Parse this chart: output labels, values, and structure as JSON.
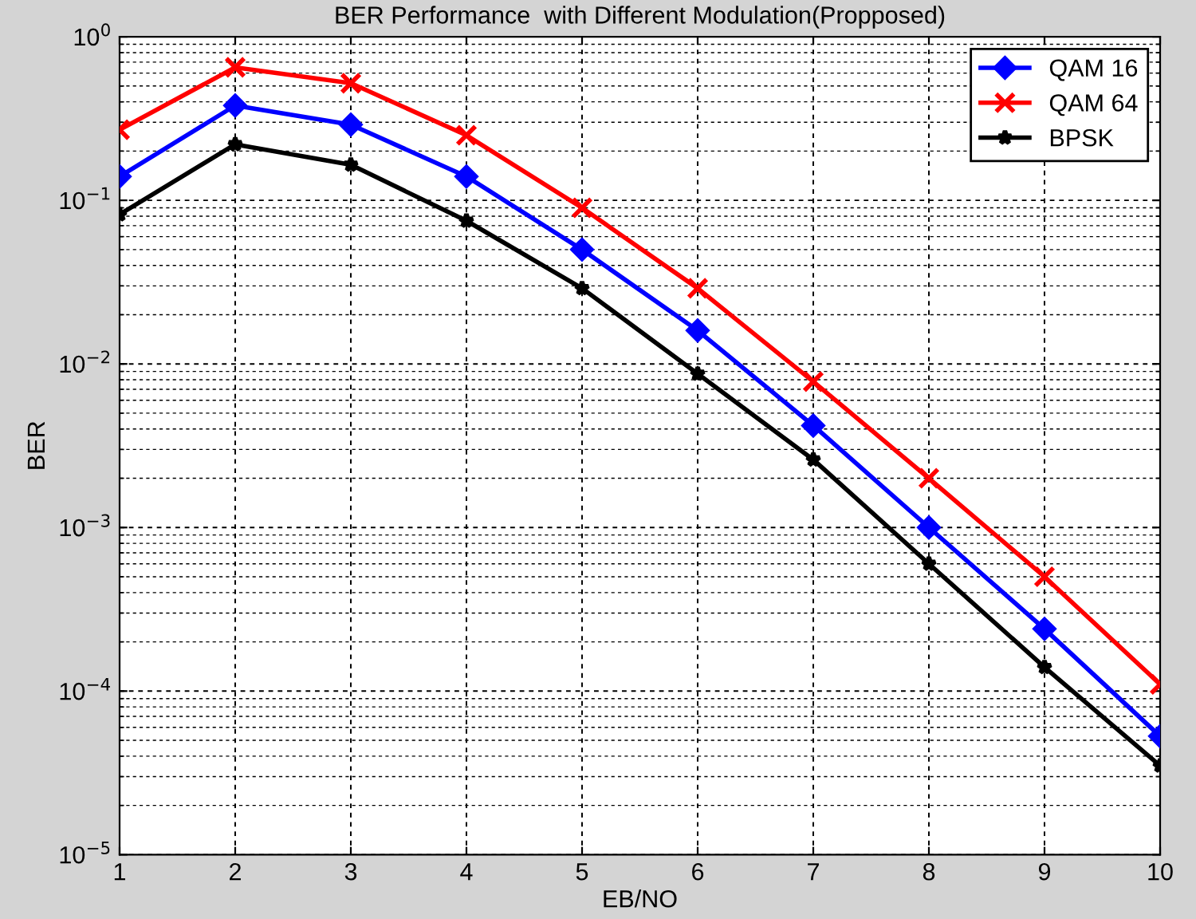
{
  "chart_data": {
    "type": "line",
    "title": "BER Performance  with Different Modulation(Propposed)",
    "xlabel": "EB/NO",
    "ylabel": "BER",
    "x": [
      1,
      2,
      3,
      4,
      5,
      6,
      7,
      8,
      9,
      10
    ],
    "series": [
      {
        "name": "QAM 16",
        "color": "#0000ff",
        "marker": "diamond",
        "values": [
          0.14,
          0.38,
          0.29,
          0.14,
          0.05,
          0.016,
          0.0042,
          0.001,
          0.00024,
          5.3e-05
        ]
      },
      {
        "name": "QAM 64",
        "color": "#ff0000",
        "marker": "cross",
        "values": [
          0.27,
          0.65,
          0.52,
          0.25,
          0.09,
          0.029,
          0.0078,
          0.002,
          0.0005,
          0.00011
        ]
      },
      {
        "name": "BPSK",
        "color": "#000000",
        "marker": "star",
        "values": [
          0.082,
          0.22,
          0.165,
          0.075,
          0.029,
          0.0087,
          0.0026,
          0.0006,
          0.00014,
          3.5e-05
        ]
      }
    ],
    "log": "y",
    "xlim": [
      1,
      10
    ],
    "xticks": [
      1,
      2,
      3,
      4,
      5,
      6,
      7,
      8,
      9,
      10
    ],
    "ylim": [
      1e-05,
      1
    ],
    "yticks": [
      {
        "value": 1e-05,
        "label": "10$^{−5}$"
      },
      {
        "value": 0.0001,
        "label": "10$^{−4}$"
      },
      {
        "value": 0.001,
        "label": "10$^{−3}$"
      },
      {
        "value": 0.01,
        "label": "10$^{−2}$"
      },
      {
        "value": 0.1,
        "label": "10$^{−1}$"
      },
      {
        "value": 1,
        "label": "10$^{0}$"
      }
    ],
    "grid": true,
    "legend": "top right",
    "line_style": "solid"
  }
}
